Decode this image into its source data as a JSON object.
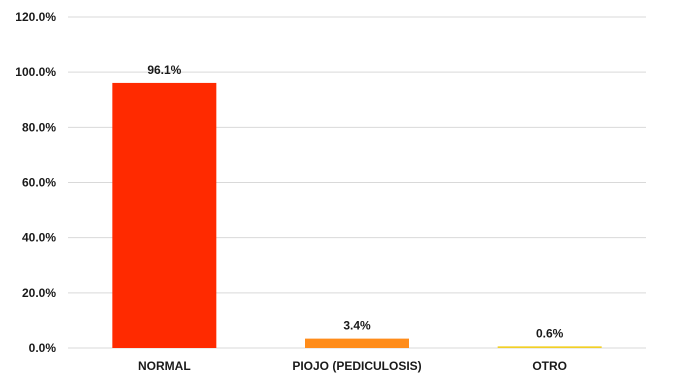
{
  "chart_data": {
    "type": "bar",
    "title": "",
    "xlabel": "",
    "ylabel": "",
    "categories": [
      "NORMAL",
      "PIOJO (PEDICULOSIS)",
      "OTRO"
    ],
    "values": [
      96.1,
      3.4,
      0.6
    ],
    "value_labels": [
      "96.1%",
      "3.4%",
      "0.6%"
    ],
    "bar_colors": [
      "#ff2a00",
      "#ff8c1a",
      "#f2d027"
    ],
    "ylim": [
      0,
      120
    ],
    "yticks": [
      0,
      20,
      40,
      60,
      80,
      100,
      120
    ],
    "ytick_labels": [
      "0.0%",
      "20.0%",
      "40.0%",
      "60.0%",
      "80.0%",
      "100.0%",
      "120.0%"
    ],
    "grid": true,
    "legend": "none"
  }
}
